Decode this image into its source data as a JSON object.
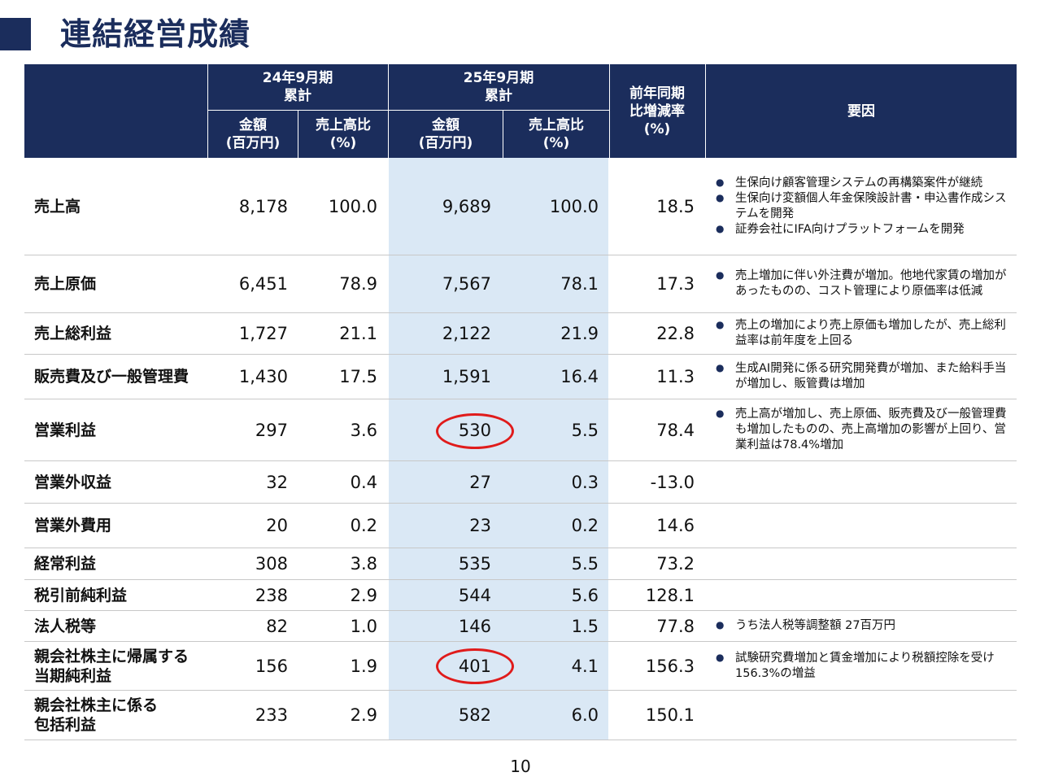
{
  "title": "連結経営成績",
  "header": {
    "period_prev": "24年9月期\n累計",
    "period_curr": "25年9月期\n累計",
    "amount": "金額\n(百万円)",
    "ratio": "売上高比\n(%)",
    "yoy": "前年同期\n比増減率\n(%)",
    "factors": "要因"
  },
  "rows": [
    {
      "label": "売上高",
      "prev_amount": "8,178",
      "prev_ratio": "100.0",
      "curr_amount": "9,689",
      "curr_ratio": "100.0",
      "yoy": "18.5",
      "notes": [
        "生保向け顧客管理システムの再構築案件が継続",
        "生保向け変額個人年金保険設計書・申込書作成システムを開発",
        "証券会社にIFA向けプラットフォームを開発"
      ]
    },
    {
      "label": "売上原価",
      "prev_amount": "6,451",
      "prev_ratio": "78.9",
      "curr_amount": "7,567",
      "curr_ratio": "78.1",
      "yoy": "17.3",
      "notes": [
        "売上増加に伴い外注費が増加。他地代家賃の増加があったものの、コスト管理により原価率は低減"
      ]
    },
    {
      "label": "売上総利益",
      "prev_amount": "1,727",
      "prev_ratio": "21.1",
      "curr_amount": "2,122",
      "curr_ratio": "21.9",
      "yoy": "22.8",
      "notes": [
        "売上の増加により売上原価も増加したが、売上総利益率は前年度を上回る"
      ]
    },
    {
      "label": "販売費及び一般管理費",
      "prev_amount": "1,430",
      "prev_ratio": "17.5",
      "curr_amount": "1,591",
      "curr_ratio": "16.4",
      "yoy": "11.3",
      "notes": [
        "生成AI開発に係る研究開発費が増加、また給料手当が増加し、販管費は増加"
      ]
    },
    {
      "label": "営業利益",
      "prev_amount": "297",
      "prev_ratio": "3.6",
      "curr_amount": "530",
      "curr_ratio": "5.5",
      "yoy": "78.4",
      "notes": [
        "売上高が増加し、売上原価、販売費及び一般管理費も増加したものの、売上高増加の影響が上回り、営業利益は78.4%増加"
      ]
    },
    {
      "label": "営業外収益",
      "prev_amount": "32",
      "prev_ratio": "0.4",
      "curr_amount": "27",
      "curr_ratio": "0.3",
      "yoy": "-13.0",
      "notes": []
    },
    {
      "label": "営業外費用",
      "prev_amount": "20",
      "prev_ratio": "0.2",
      "curr_amount": "23",
      "curr_ratio": "0.2",
      "yoy": "14.6",
      "notes": []
    },
    {
      "label": "経常利益",
      "prev_amount": "308",
      "prev_ratio": "3.8",
      "curr_amount": "535",
      "curr_ratio": "5.5",
      "yoy": "73.2",
      "notes": []
    },
    {
      "label": "税引前純利益",
      "prev_amount": "238",
      "prev_ratio": "2.9",
      "curr_amount": "544",
      "curr_ratio": "5.6",
      "yoy": "128.1",
      "notes": []
    },
    {
      "label": "法人税等",
      "prev_amount": "82",
      "prev_ratio": "1.0",
      "curr_amount": "146",
      "curr_ratio": "1.5",
      "yoy": "77.8",
      "notes": [
        "うち法人税等調整額 27百万円"
      ]
    },
    {
      "label": "親会社株主に帰属する\n当期純利益",
      "prev_amount": "156",
      "prev_ratio": "1.9",
      "curr_amount": "401",
      "curr_ratio": "4.1",
      "yoy": "156.3",
      "notes": [
        "試験研究費増加と賃金増加により税額控除を受け156.3%の増益"
      ]
    },
    {
      "label": "親会社株主に係る\n包括利益",
      "prev_amount": "233",
      "prev_ratio": "2.9",
      "curr_amount": "582",
      "curr_ratio": "6.0",
      "yoy": "150.1",
      "notes": []
    }
  ],
  "page_number": "10",
  "colors": {
    "navy": "#1b2d5c",
    "highlight": "#dae8f5",
    "circle": "#e01b1b"
  }
}
